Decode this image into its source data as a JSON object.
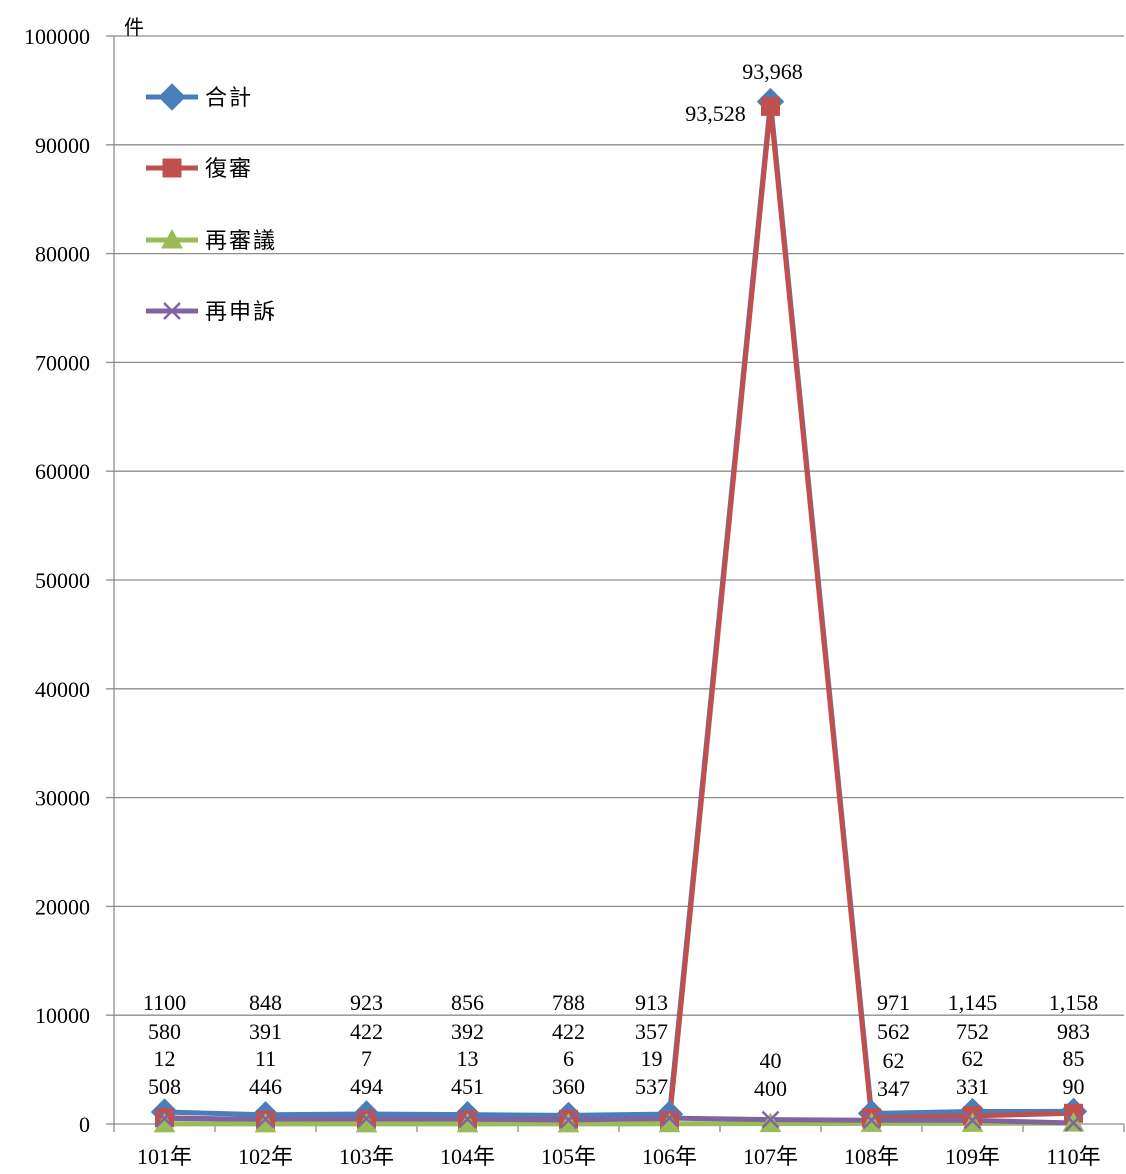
{
  "chart_data": {
    "type": "line",
    "unit_label": "件",
    "categories": [
      "101年",
      "102年",
      "103年",
      "104年",
      "105年",
      "106年",
      "107年",
      "108年",
      "109年",
      "110年"
    ],
    "ylim": [
      0,
      100000
    ],
    "yticks": [
      0,
      10000,
      20000,
      30000,
      40000,
      50000,
      60000,
      70000,
      80000,
      90000,
      100000
    ],
    "grid": true,
    "legend_position": "top-left",
    "series": [
      {
        "name": "合計",
        "color": "#4a7ebb",
        "marker": "diamond",
        "values": [
          1100,
          848,
          923,
          856,
          788,
          913,
          93968,
          971,
          1145,
          1158
        ],
        "labels": [
          "1100",
          "848",
          "923",
          "856",
          "788",
          "913",
          "93,968",
          "971",
          "1,145",
          "1,158"
        ]
      },
      {
        "name": "復審",
        "color": "#c0504d",
        "marker": "square",
        "values": [
          580,
          391,
          422,
          392,
          422,
          357,
          93528,
          562,
          752,
          983
        ],
        "labels": [
          "580",
          "391",
          "422",
          "392",
          "422",
          "357",
          "93,528",
          "562",
          "752",
          "983"
        ]
      },
      {
        "name": "再審議",
        "color": "#9bbb59",
        "marker": "triangle",
        "values": [
          12,
          11,
          7,
          13,
          6,
          19,
          40,
          62,
          62,
          85
        ],
        "labels": [
          "12",
          "11",
          "7",
          "13",
          "6",
          "19",
          "40",
          "62",
          "62",
          "85"
        ]
      },
      {
        "name": "再申訴",
        "color": "#8064a2",
        "marker": "x",
        "values": [
          508,
          446,
          494,
          451,
          360,
          537,
          400,
          347,
          331,
          90
        ],
        "labels": [
          "508",
          "446",
          "494",
          "451",
          "360",
          "537",
          "400",
          "347",
          "331",
          "90"
        ]
      }
    ]
  }
}
